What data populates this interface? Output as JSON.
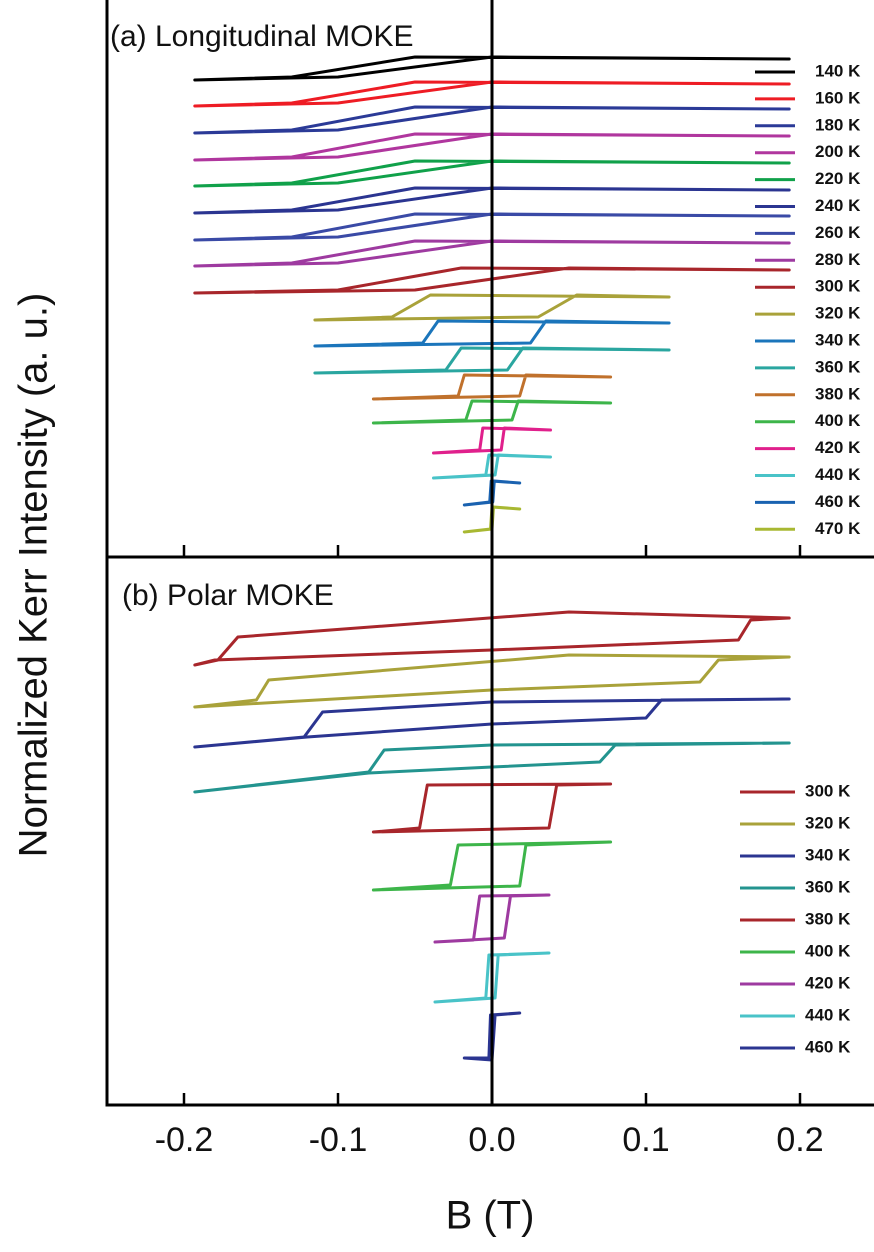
{
  "chart_data": [
    {
      "type": "line",
      "title": "(a) Longitudinal MOKE",
      "ylabel": "Normalized Kerr Intensity (a. u.)",
      "xlim": [
        -0.25,
        0.25
      ],
      "ylim": [
        0,
        557
      ],
      "legend": "upper right",
      "series": [
        {
          "name": "140 K",
          "color": "#000000",
          "x": [
            -0.193,
            -0.1,
            0.0,
            0.193,
            -0.05,
            -0.13
          ],
          "values": [
            477,
            480,
            500,
            498,
            500,
            480
          ]
        },
        {
          "name": "160 K",
          "color": "#ee1c24",
          "x": [
            -0.193,
            -0.1,
            0.0,
            0.193,
            -0.05,
            -0.13
          ],
          "values": [
            451,
            454,
            475,
            473,
            475,
            454
          ]
        },
        {
          "name": "180 K",
          "color": "#2b3a97",
          "x": [
            -0.193,
            -0.1,
            0.0,
            0.193,
            -0.05,
            -0.13
          ],
          "values": [
            424,
            427,
            450,
            448,
            450,
            427
          ]
        },
        {
          "name": "200 K",
          "color": "#b0369e",
          "x": [
            -0.193,
            -0.1,
            0.0,
            0.193,
            -0.05,
            -0.13
          ],
          "values": [
            397,
            400,
            423,
            421,
            423,
            400
          ]
        },
        {
          "name": "220 K",
          "color": "#10a14a",
          "x": [
            -0.193,
            -0.1,
            0.0,
            0.193,
            -0.05,
            -0.13
          ],
          "values": [
            371,
            374,
            396,
            394,
            396,
            374
          ]
        },
        {
          "name": "240 K",
          "color": "#2b3591",
          "x": [
            -0.193,
            -0.1,
            0.0,
            0.193,
            -0.05,
            -0.13
          ],
          "values": [
            344,
            347,
            369,
            367,
            369,
            347
          ]
        },
        {
          "name": "260 K",
          "color": "#3a4aa6",
          "x": [
            -0.193,
            -0.1,
            0.0,
            0.193,
            -0.05,
            -0.13
          ],
          "values": [
            317,
            320,
            343,
            341,
            343,
            320
          ]
        },
        {
          "name": "280 K",
          "color": "#9e3aa0",
          "x": [
            -0.193,
            -0.1,
            0.0,
            0.193,
            -0.05,
            -0.13
          ],
          "values": [
            291,
            294,
            316,
            314,
            316,
            294
          ]
        },
        {
          "name": "300 K",
          "color": "#a8262b",
          "x": [
            -0.193,
            -0.05,
            0.05,
            0.193,
            -0.02,
            -0.1
          ],
          "values": [
            264,
            267,
            289,
            287,
            289,
            267
          ]
        },
        {
          "name": "320 K",
          "color": "#a9a23a",
          "x": [
            -0.115,
            0.03,
            0.055,
            0.115,
            -0.04,
            -0.065
          ],
          "values": [
            237,
            240,
            262,
            260,
            262,
            240
          ]
        },
        {
          "name": "340 K",
          "color": "#1b75bb",
          "x": [
            -0.115,
            0.025,
            0.035,
            0.115,
            -0.035,
            -0.045
          ],
          "values": [
            211,
            214,
            236,
            234,
            236,
            214
          ]
        },
        {
          "name": "360 K",
          "color": "#2aa6a0",
          "x": [
            -0.115,
            0.01,
            0.02,
            0.115,
            -0.02,
            -0.03
          ],
          "values": [
            184,
            187,
            209,
            207,
            209,
            187
          ]
        },
        {
          "name": "380 K",
          "color": "#c0712c",
          "x": [
            -0.077,
            0.018,
            0.022,
            0.077,
            -0.018,
            -0.022
          ],
          "values": [
            158,
            161,
            182,
            180,
            182,
            161
          ]
        },
        {
          "name": "400 K",
          "color": "#3db54a",
          "x": [
            -0.077,
            0.013,
            0.017,
            0.077,
            -0.013,
            -0.017
          ],
          "values": [
            134,
            137,
            156,
            154,
            156,
            137
          ]
        },
        {
          "name": "420 K",
          "color": "#e0208c",
          "x": [
            -0.038,
            0.006,
            0.008,
            0.038,
            -0.006,
            -0.008
          ],
          "values": [
            104,
            107,
            129,
            127,
            129,
            107
          ]
        },
        {
          "name": "440 K",
          "color": "#49c3c8",
          "x": [
            -0.038,
            0.002,
            0.004,
            0.038,
            -0.002,
            -0.004
          ],
          "values": [
            79,
            82,
            102,
            100,
            102,
            82
          ]
        },
        {
          "name": "460 K",
          "color": "#1a62b0",
          "x": [
            -0.018,
            0.0005,
            0.0015,
            0.018,
            -0.0005,
            -0.0015
          ],
          "values": [
            52,
            55,
            76,
            74,
            76,
            55
          ]
        },
        {
          "name": "470 K",
          "color": "#a8b832",
          "x": [
            -0.018,
            0.0,
            0.001,
            0.018,
            0.0,
            -0.001
          ],
          "values": [
            25,
            28,
            50,
            48,
            50,
            28
          ]
        }
      ]
    },
    {
      "type": "line",
      "title": "(b) Polar MOKE",
      "xlabel": "B (T)",
      "xlim": [
        -0.25,
        0.25
      ],
      "ylim": [
        0,
        548
      ],
      "legend": "lower right",
      "xticks": [
        -0.2,
        -0.1,
        {
          "value": 0,
          "label": "0.0"
        },
        0.1,
        0.2
      ],
      "series": [
        {
          "name": "300 K",
          "color": "#a8262b",
          "x": [
            -0.193,
            -0.18,
            0.0,
            0.16,
            0.168,
            0.193,
            0.05,
            -0.165,
            -0.178
          ],
          "values": [
            440,
            445,
            455,
            465,
            485,
            487,
            493,
            468,
            445
          ]
        },
        {
          "name": "320 K",
          "color": "#a9a23a",
          "x": [
            -0.193,
            0.0,
            0.135,
            0.147,
            0.193,
            0.05,
            -0.145,
            -0.153
          ],
          "values": [
            398,
            415,
            423,
            445,
            448,
            450,
            425,
            405
          ]
        },
        {
          "name": "340 K",
          "color": "#2b3591",
          "x": [
            -0.193,
            -0.12,
            0.0,
            0.1,
            0.11,
            0.193,
            0.0,
            -0.11,
            -0.122
          ],
          "values": [
            358,
            368,
            381,
            387,
            405,
            406,
            403,
            393,
            368
          ]
        },
        {
          "name": "360 K",
          "color": "#23948f",
          "x": [
            -0.193,
            -0.08,
            0.0,
            0.07,
            0.08,
            0.193,
            0.0,
            -0.07,
            -0.08
          ],
          "values": [
            313,
            332,
            338,
            343,
            360,
            362,
            360,
            355,
            333
          ]
        },
        {
          "name": "380 K",
          "color": "#a8262b",
          "x": [
            -0.077,
            0.037,
            0.042,
            0.077,
            -0.042,
            -0.047
          ],
          "values": [
            273,
            277,
            320,
            321,
            320,
            277
          ]
        },
        {
          "name": "400 K",
          "color": "#3db54a",
          "x": [
            -0.077,
            0.018,
            0.022,
            0.077,
            -0.022,
            -0.027
          ],
          "values": [
            215,
            219,
            260,
            263,
            260,
            220
          ]
        },
        {
          "name": "420 K",
          "color": "#9e3aa0",
          "x": [
            -0.037,
            0.008,
            0.012,
            0.037,
            -0.008,
            -0.012
          ],
          "values": [
            163,
            167,
            209,
            210,
            209,
            165
          ]
        },
        {
          "name": "440 K",
          "color": "#49c3c8",
          "x": [
            -0.037,
            0.002,
            0.004,
            0.037,
            -0.002,
            -0.004
          ],
          "values": [
            103,
            107,
            150,
            152,
            150,
            107
          ]
        },
        {
          "name": "460 K",
          "color": "#2b3591",
          "x": [
            -0.018,
            0.0,
            0.002,
            0.018,
            -0.001,
            -0.002
          ],
          "values": [
            47,
            45,
            90,
            92,
            90,
            47
          ]
        }
      ]
    }
  ]
}
